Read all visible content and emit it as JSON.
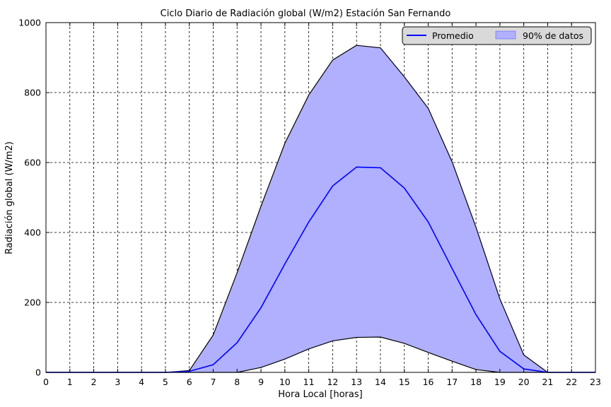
{
  "chart_data": {
    "type": "area",
    "title": "Ciclo Diario de Radiación global (W/m2) Estación San Fernando",
    "xlabel": "Hora Local [horas]",
    "ylabel": "Radiación global (W/m2)",
    "xlim": [
      0,
      23
    ],
    "ylim": [
      0,
      1000
    ],
    "x": [
      0,
      1,
      2,
      3,
      4,
      5,
      6,
      7,
      8,
      9,
      10,
      11,
      12,
      13,
      14,
      15,
      16,
      17,
      18,
      19,
      20,
      21,
      22,
      23
    ],
    "x_ticks": [
      "0",
      "1",
      "2",
      "3",
      "4",
      "5",
      "6",
      "7",
      "8",
      "9",
      "10",
      "11",
      "12",
      "13",
      "14",
      "15",
      "16",
      "17",
      "18",
      "19",
      "20",
      "21",
      "22",
      "23"
    ],
    "y_ticks": [
      "0",
      "200",
      "400",
      "600",
      "800",
      "1000"
    ],
    "grid": true,
    "legend_position": "top-right",
    "series": [
      {
        "name": "Promedio",
        "type": "line",
        "color": "#0000ff",
        "values": [
          0,
          0,
          0,
          0,
          0,
          0,
          3,
          22,
          85,
          185,
          310,
          430,
          533,
          587,
          585,
          527,
          430,
          297,
          165,
          60,
          10,
          0,
          0,
          0
        ]
      },
      {
        "name": "90% de datos",
        "type": "band",
        "color": "#0000ff",
        "fill_color": "#b0b0ff",
        "upper": [
          0,
          0,
          0,
          0,
          0,
          0,
          5,
          107,
          285,
          475,
          655,
          793,
          893,
          935,
          928,
          845,
          755,
          602,
          415,
          210,
          50,
          0,
          0,
          0
        ],
        "lower": [
          0,
          0,
          0,
          0,
          0,
          0,
          0,
          0,
          0,
          14,
          38,
          67,
          90,
          100,
          101,
          83,
          57,
          32,
          8,
          0,
          0,
          0,
          0,
          0
        ]
      }
    ]
  }
}
